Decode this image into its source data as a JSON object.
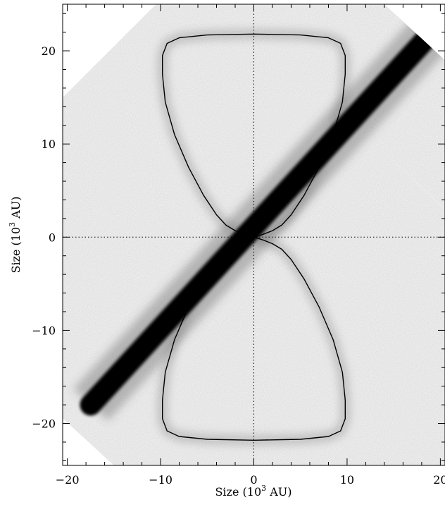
{
  "chart_data": {
    "type": "heatmap",
    "title": "",
    "xlabel": {
      "main": "Size (10",
      "exp": "3",
      "tail": " AU)"
    },
    "ylabel": {
      "main": "Size (10",
      "exp": "3",
      "tail": " AU)"
    },
    "xlim": [
      -20.5,
      20.5
    ],
    "ylim": [
      -24.5,
      25
    ],
    "xticks": [
      -20,
      -10,
      0,
      10,
      20
    ],
    "yticks": [
      -20,
      -10,
      0,
      10,
      20
    ],
    "xtick_labels": [
      "−20",
      "−10",
      "0",
      "10",
      "20"
    ],
    "ytick_labels": [
      "−20",
      "−10",
      "0",
      "10",
      "20"
    ],
    "x_minor_step": 2,
    "y_minor_step": 2,
    "reference_lines": {
      "x": 0,
      "y": 0,
      "style": "dotted"
    },
    "grid": false,
    "colormap": "inverted-grayscale",
    "disk": {
      "from": [
        -17.5,
        -18
      ],
      "to": [
        20.5,
        23.5
      ],
      "core_width": 2.3
    },
    "field_of_view": [
      [
        -21,
        14.5
      ],
      [
        -10.5,
        25
      ],
      [
        14,
        25
      ],
      [
        20.5,
        19
      ],
      [
        20.5,
        3
      ],
      [
        12.5,
        10.5
      ],
      [
        21,
        2.5
      ],
      [
        21,
        -25
      ],
      [
        -15,
        -24.5
      ],
      [
        -21,
        -19
      ],
      [
        -21,
        -2
      ]
    ],
    "outline_model": {
      "upper": [
        [
          0,
          0
        ],
        [
          -1,
          0.3
        ],
        [
          -2,
          0.7
        ],
        [
          -3,
          1.3
        ],
        [
          -4,
          2.4
        ],
        [
          -5.4,
          4.5
        ],
        [
          -7,
          7.5
        ],
        [
          -8.5,
          11
        ],
        [
          -9.5,
          14.5
        ],
        [
          -9.8,
          17.5
        ],
        [
          -9.8,
          19.5
        ],
        [
          -9.3,
          20.8
        ],
        [
          -8,
          21.4
        ],
        [
          -5,
          21.7
        ],
        [
          0,
          21.8
        ],
        [
          5,
          21.7
        ],
        [
          8,
          21.4
        ],
        [
          9.3,
          20.8
        ],
        [
          9.8,
          19.5
        ],
        [
          9.8,
          17.5
        ],
        [
          9.5,
          14.5
        ],
        [
          8.5,
          11
        ],
        [
          7,
          7.5
        ],
        [
          5.4,
          4.5
        ],
        [
          4,
          2.4
        ],
        [
          3,
          1.3
        ],
        [
          2,
          0.7
        ],
        [
          1,
          0.3
        ],
        [
          0,
          0
        ]
      ],
      "lower": [
        [
          0,
          0
        ],
        [
          -1,
          -0.3
        ],
        [
          -2,
          -0.7
        ],
        [
          -3,
          -1.3
        ],
        [
          -4,
          -2.4
        ],
        [
          -5.4,
          -4.5
        ],
        [
          -7,
          -7.5
        ],
        [
          -8.5,
          -11
        ],
        [
          -9.5,
          -14.5
        ],
        [
          -9.8,
          -17.5
        ],
        [
          -9.8,
          -19.5
        ],
        [
          -9.3,
          -20.8
        ],
        [
          -8,
          -21.4
        ],
        [
          -5,
          -21.7
        ],
        [
          0,
          -21.8
        ],
        [
          5,
          -21.7
        ],
        [
          8,
          -21.4
        ],
        [
          9.3,
          -20.8
        ],
        [
          9.8,
          -19.5
        ],
        [
          9.8,
          -17.5
        ],
        [
          9.5,
          -14.5
        ],
        [
          8.5,
          -11
        ],
        [
          7,
          -7.5
        ],
        [
          5.4,
          -4.5
        ],
        [
          4,
          -2.4
        ],
        [
          3,
          -1.3
        ],
        [
          2,
          -0.7
        ],
        [
          1,
          -0.3
        ],
        [
          0,
          0
        ]
      ]
    }
  }
}
